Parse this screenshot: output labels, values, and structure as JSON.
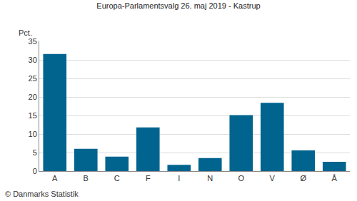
{
  "chart_data": {
    "type": "bar",
    "title": "Europa-Parlamentsvalg 26. maj 2019 - Kastrup",
    "ylabel": "Pct.",
    "annotations": [
      "© Danmarks Statistik"
    ],
    "categories": [
      "A",
      "B",
      "C",
      "F",
      "I",
      "N",
      "O",
      "V",
      "Ø",
      "Å"
    ],
    "values": [
      31.6,
      6.0,
      3.9,
      11.8,
      1.7,
      3.5,
      15.1,
      18.4,
      5.6,
      2.5
    ],
    "color": "#00648f",
    "ylim": [
      0,
      35
    ],
    "yticks": [
      0,
      5,
      10,
      15,
      20,
      25,
      30,
      35
    ],
    "grid": true
  }
}
